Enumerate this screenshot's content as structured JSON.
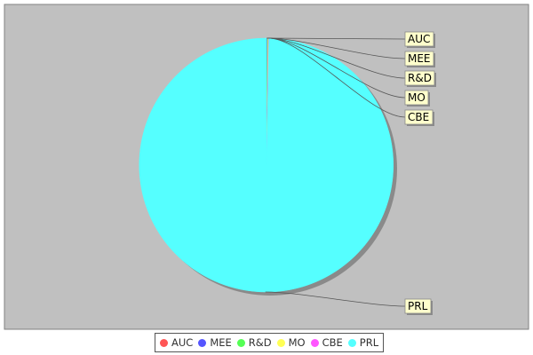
{
  "chart_data": {
    "type": "pie",
    "title": "",
    "slices": [
      {
        "label": "AUC",
        "value": 0.06,
        "color": "#ff5555"
      },
      {
        "label": "MEE",
        "value": 0.06,
        "color": "#5555ff"
      },
      {
        "label": "R&D",
        "value": 0.06,
        "color": "#55ff55"
      },
      {
        "label": "MO",
        "value": 0.06,
        "color": "#ffff55"
      },
      {
        "label": "CBE",
        "value": 0.06,
        "color": "#ff55ff"
      },
      {
        "label": "PRL",
        "value": 99.7,
        "color": "#55ffff"
      }
    ],
    "legend_position": "bottom",
    "plot_background": "#c0c0c0"
  }
}
